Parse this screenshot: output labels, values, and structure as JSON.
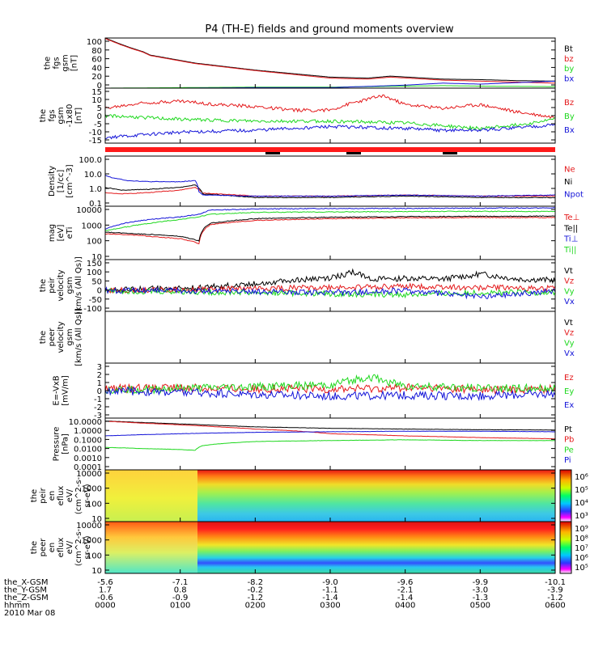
{
  "title": "P4 (TH-E) fields and ground moments overview",
  "colors": {
    "black": "#000000",
    "red": "#e41a1c",
    "green": "#1fd81f",
    "blue": "#1414d8",
    "bar_red": "#ff1a1a"
  },
  "chart_data": [
    {
      "type": "line",
      "ylabel": [
        "the",
        "fgs",
        "gsm",
        "[nT]"
      ],
      "ylim": [
        0,
        100
      ],
      "yticks": [
        "100",
        "80",
        "60",
        "40",
        "20",
        "0"
      ],
      "series": [
        {
          "name": "Bt",
          "color": "black",
          "x": [
            0,
            0.1,
            0.2,
            0.35,
            0.5,
            0.6,
            1.2,
            2.0,
            3.0,
            3.5,
            3.8,
            4.5,
            5.0,
            5.5,
            6.0
          ],
          "values": [
            100,
            94,
            88,
            80,
            73,
            66,
            50,
            36,
            22,
            20,
            24,
            18,
            17,
            15,
            14
          ]
        },
        {
          "name": "bz",
          "color": "red",
          "x": [
            0,
            0.1,
            0.2,
            0.35,
            0.5,
            0.6,
            1.2,
            2.0,
            3.0,
            3.5,
            3.8,
            4.5,
            5.0,
            5.5,
            6.0
          ],
          "values": [
            99,
            93,
            87,
            79,
            72,
            65,
            49,
            35,
            20,
            18,
            22,
            16,
            14,
            12,
            10
          ]
        },
        {
          "name": "by",
          "color": "green",
          "x": [
            0,
            1,
            2,
            3,
            4,
            4.5,
            5,
            6
          ],
          "values": [
            0,
            1,
            2,
            2,
            4,
            5,
            4,
            3
          ]
        },
        {
          "name": "bx",
          "color": "blue",
          "x": [
            0,
            1,
            2,
            3,
            4,
            4.5,
            5,
            6
          ],
          "values": [
            0,
            0,
            1,
            1,
            6,
            10,
            8,
            14
          ]
        }
      ]
    },
    {
      "type": "line",
      "ylabel": [
        "the",
        "fgs",
        "gsm",
        "-1x80",
        "[nT]"
      ],
      "ylim": [
        -15,
        15
      ],
      "yticks": [
        "15",
        "10",
        "5",
        "0",
        "-5",
        "-10",
        "-15"
      ],
      "series": [
        {
          "name": "Bz",
          "color": "red",
          "x": [
            0,
            0.5,
            1.0,
            1.5,
            2.0,
            2.5,
            3.0,
            3.3,
            3.7,
            4.0,
            4.5,
            5.0,
            5.5,
            6.0
          ],
          "values": [
            4,
            7,
            8,
            6,
            5,
            3,
            3,
            7,
            11,
            6,
            4,
            6,
            2,
            -1
          ]
        },
        {
          "name": "By",
          "color": "green",
          "x": [
            0,
            1,
            2,
            3,
            4,
            5,
            5.5,
            6
          ],
          "values": [
            0,
            -2,
            -3,
            -3,
            -4,
            -7,
            -5,
            -2
          ]
        },
        {
          "name": "Bx",
          "color": "blue",
          "x": [
            0,
            1,
            2,
            3,
            4,
            4.5,
            5,
            6
          ],
          "values": [
            -12,
            -9,
            -8,
            -6,
            -7,
            -8,
            -8,
            -5
          ]
        }
      ]
    },
    {
      "type": "line",
      "ylabel": [
        "Density",
        "[1/cc]",
        "[cm^-3]"
      ],
      "ylim": [
        0.1,
        300
      ],
      "yscale": "log",
      "yticks": [
        "100.0",
        "10.0",
        "1.0",
        "0.1"
      ],
      "series": [
        {
          "name": "Ne",
          "color": "red",
          "x": [
            0,
            0.2,
            0.6,
            1.0,
            1.2,
            1.3,
            2,
            3,
            4,
            5,
            6
          ],
          "values": [
            0.9,
            0.7,
            0.9,
            1.3,
            2.0,
            0.8,
            0.5,
            0.5,
            0.6,
            0.5,
            0.5
          ]
        },
        {
          "name": "Ni",
          "color": "black",
          "x": [
            0,
            0.2,
            0.6,
            1.0,
            1.2,
            1.3,
            2,
            3,
            4,
            5,
            6
          ],
          "values": [
            2.0,
            1.3,
            1.5,
            2.0,
            3.0,
            0.7,
            0.4,
            0.4,
            0.5,
            0.4,
            0.4
          ]
        },
        {
          "name": "Npot",
          "color": "blue",
          "x": [
            0,
            0.1,
            0.3,
            0.6,
            1.0,
            1.2,
            1.25,
            1.3,
            2,
            3,
            4,
            5,
            6
          ],
          "values": [
            14,
            9,
            6,
            5,
            5,
            6,
            1.0,
            0.6,
            0.5,
            0.5,
            0.6,
            0.5,
            0.6
          ]
        }
      ]
    },
    {
      "type": "line",
      "ylabel": [
        "mag",
        "[eV]",
        "eTi"
      ],
      "ylim": [
        10,
        10000
      ],
      "yscale": "log",
      "yticks": [
        "10000",
        "1000",
        "100",
        "10"
      ],
      "series": [
        {
          "name": "Te⊥",
          "color": "red",
          "x": [
            0,
            0.3,
            0.6,
            1.0,
            1.25,
            1.4,
            2,
            3,
            4,
            5,
            6
          ],
          "values": [
            280,
            250,
            200,
            150,
            80,
            900,
            1600,
            2000,
            2200,
            2300,
            2300
          ]
        },
        {
          "name": "Te||",
          "color": "black",
          "x": [
            0,
            0.3,
            0.6,
            1.0,
            1.25,
            1.4,
            2,
            3,
            4,
            5,
            6
          ],
          "values": [
            350,
            300,
            260,
            200,
            110,
            1100,
            2000,
            2400,
            2600,
            2700,
            2800
          ]
        },
        {
          "name": "Ti⊥",
          "color": "blue",
          "x": [
            0,
            0.3,
            0.6,
            1.0,
            1.25,
            1.4,
            2,
            3,
            4,
            5,
            6
          ],
          "values": [
            500,
            1200,
            1800,
            2500,
            3500,
            6000,
            7000,
            7500,
            7500,
            7800,
            8000
          ]
        },
        {
          "name": "Ti||",
          "color": "green",
          "x": [
            0,
            0.3,
            0.6,
            1.0,
            1.25,
            1.4,
            2,
            3,
            4,
            5,
            6
          ],
          "values": [
            400,
            700,
            1100,
            1800,
            2500,
            3500,
            4500,
            4800,
            5000,
            5200,
            5000
          ]
        }
      ]
    },
    {
      "type": "line",
      "ylabel": [
        "the",
        "peir",
        "velocity",
        "gsm",
        "[km/s (All Qs)]"
      ],
      "ylim": [
        -100,
        150
      ],
      "yticks": [
        "150",
        "100",
        "50",
        "0",
        "-50",
        "-100"
      ],
      "series": [
        {
          "name": "Vt",
          "color": "black",
          "x": [
            0,
            1,
            1.5,
            2,
            2.5,
            3,
            3.3,
            3.6,
            4,
            4.5,
            5,
            5.5,
            6
          ],
          "values": [
            5,
            10,
            20,
            35,
            50,
            60,
            90,
            55,
            60,
            55,
            80,
            55,
            50
          ]
        },
        {
          "name": "Vz",
          "color": "red",
          "x": [
            0,
            1,
            2,
            3,
            4,
            5,
            6
          ],
          "values": [
            0,
            5,
            10,
            15,
            20,
            15,
            10
          ]
        },
        {
          "name": "Vy",
          "color": "green",
          "x": [
            0,
            1,
            2,
            3,
            4,
            5,
            6
          ],
          "values": [
            0,
            -5,
            -10,
            -15,
            -20,
            -10,
            -10
          ]
        },
        {
          "name": "Vx",
          "color": "blue",
          "x": [
            0,
            1,
            2,
            3,
            4,
            5,
            6
          ],
          "values": [
            0,
            0,
            -5,
            -10,
            0,
            -30,
            0
          ]
        }
      ]
    },
    {
      "type": "line",
      "ylabel": [
        "the",
        "peer",
        "velocity",
        "gsm",
        "[km/s (All Qs)]"
      ],
      "series": [
        {
          "name": "Vt",
          "color": "black",
          "x": [],
          "values": []
        },
        {
          "name": "Vz",
          "color": "red",
          "x": [],
          "values": []
        },
        {
          "name": "Vy",
          "color": "green",
          "x": [],
          "values": []
        },
        {
          "name": "Vx",
          "color": "blue",
          "x": [],
          "values": []
        }
      ]
    },
    {
      "type": "line",
      "ylabel": [
        "E=-VxB",
        "[mV/m]"
      ],
      "ylim": [
        -3,
        3
      ],
      "yticks": [
        "3",
        "2",
        "1",
        "0",
        "-1",
        "-2",
        "-3"
      ],
      "series": [
        {
          "name": "Ez",
          "color": "red",
          "x": [
            0,
            1,
            2,
            3,
            4,
            5,
            6
          ],
          "values": [
            0.2,
            0.3,
            0.2,
            0.2,
            0.3,
            0.1,
            0.2
          ]
        },
        {
          "name": "Ey",
          "color": "green",
          "x": [
            0,
            1,
            2,
            3,
            3.5,
            4,
            5,
            6
          ],
          "values": [
            0.1,
            0.2,
            0.4,
            0.6,
            1.5,
            0.5,
            0.3,
            0.2
          ]
        },
        {
          "name": "Ex",
          "color": "blue",
          "x": [
            0,
            1,
            2,
            3,
            4,
            5,
            6
          ],
          "values": [
            0,
            -0.2,
            -0.4,
            -0.6,
            -0.5,
            -0.6,
            -0.3
          ]
        }
      ]
    },
    {
      "type": "line",
      "ylabel": [
        "Pressure",
        "[nPa]"
      ],
      "ylim": [
        0.0001,
        20
      ],
      "yscale": "log",
      "yticks": [
        "10.0000",
        "1.0000",
        "0.1000",
        "0.0100",
        "0.0010",
        "0.0001"
      ],
      "series": [
        {
          "name": "Pt",
          "color": "black",
          "x": [
            0,
            0.5,
            1,
            1.5,
            2,
            3,
            4,
            5,
            6
          ],
          "values": [
            10,
            7,
            5,
            3.5,
            2.5,
            1.8,
            1.5,
            1.3,
            1.2
          ]
        },
        {
          "name": "Pb",
          "color": "red",
          "x": [
            0,
            0.5,
            1,
            1.5,
            2,
            3,
            4,
            5,
            6
          ],
          "values": [
            9.5,
            6,
            4,
            2.5,
            1.5,
            0.5,
            0.3,
            0.2,
            0.15
          ]
        },
        {
          "name": "Pe",
          "color": "green",
          "x": [
            0,
            0.5,
            1,
            1.2,
            1.3,
            2,
            3,
            4,
            5,
            6
          ],
          "values": [
            0.02,
            0.015,
            0.012,
            0.01,
            0.03,
            0.08,
            0.1,
            0.12,
            0.1,
            0.1
          ]
        },
        {
          "name": "Pi",
          "color": "blue",
          "x": [
            0,
            0.5,
            1,
            1.5,
            2,
            3,
            4,
            5,
            6
          ],
          "values": [
            0.3,
            0.4,
            0.5,
            0.6,
            0.7,
            0.8,
            0.9,
            0.9,
            0.8
          ]
        }
      ]
    },
    {
      "type": "heatmap",
      "ylabel": [
        "the",
        "peir",
        "en",
        "eflux",
        "eV/",
        "(cm^2-s-",
        "sr-eV)"
      ],
      "yscale": "log",
      "yticks": [
        "10000",
        "1000",
        "100",
        "10"
      ],
      "colorbar": {
        "ticks": [
          "10⁶",
          "10⁵",
          "10⁴",
          "10³"
        ]
      }
    },
    {
      "type": "heatmap",
      "ylabel": [
        "the",
        "peer",
        "en",
        "eflux",
        "eV/",
        "(cm^2-s-",
        "sr-eV)"
      ],
      "yscale": "log",
      "yticks": [
        "10000",
        "1000",
        "100",
        "10"
      ],
      "colorbar": {
        "ticks": [
          "10⁹",
          "10⁸",
          "10⁷",
          "10⁶",
          "10⁵"
        ]
      }
    }
  ],
  "footer": {
    "row_labels": [
      "the_X-GSM",
      "the_Y-GSM",
      "the_Z-GSM",
      "hhmm",
      "2010 Mar 08"
    ],
    "columns": [
      [
        "-5.6",
        "1.7",
        "-0.6",
        "0000"
      ],
      [
        "-7.1",
        "0.8",
        "-0.9",
        "0100"
      ],
      [
        "-8.2",
        "-0.2",
        "-1.2",
        "0200"
      ],
      [
        "-9.0",
        "-1.1",
        "-1.4",
        "0300"
      ],
      [
        "-9.6",
        "-2.1",
        "-1.4",
        "0400"
      ],
      [
        "-9.9",
        "-3.0",
        "-1.3",
        "0500"
      ],
      [
        "-10.1",
        "-3.9",
        "-1.2",
        "0600"
      ]
    ]
  }
}
